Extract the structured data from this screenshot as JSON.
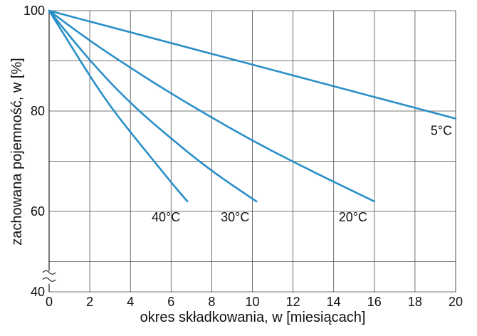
{
  "chart_data": {
    "type": "line",
    "title": "",
    "xlabel": "okres składkowania, w [miesiącach]",
    "ylabel": "zachowana pojemność, w [%]",
    "xlim": [
      0,
      20
    ],
    "ylim": [
      40,
      100
    ],
    "x_ticks": [
      0,
      2,
      4,
      6,
      8,
      10,
      12,
      14,
      16,
      18,
      20
    ],
    "y_ticks": [
      40,
      60,
      80,
      100
    ],
    "y_ticks_labels": [
      "40",
      "60",
      "80",
      "100"
    ],
    "y_axis_break_at": 45,
    "grid": true,
    "line_color": "#2a8fc8",
    "series": [
      {
        "name": "5°C",
        "x": [
          0,
          20
        ],
        "y": [
          100,
          78.5
        ]
      },
      {
        "name": "20°C",
        "x": [
          0,
          2,
          4,
          6,
          8,
          10,
          12,
          14,
          16
        ],
        "y": [
          100,
          94,
          88.6,
          83.5,
          78.7,
          74.1,
          69.9,
          65.9,
          62
        ]
      },
      {
        "name": "30°C",
        "x": [
          0,
          2,
          4,
          6,
          8,
          10.2
        ],
        "y": [
          100,
          90,
          81.5,
          74.5,
          68,
          62
        ]
      },
      {
        "name": "40°C",
        "x": [
          0,
          1,
          2,
          3,
          4,
          5,
          6,
          6.8
        ],
        "y": [
          100,
          93.5,
          87,
          81,
          75.8,
          70.8,
          65.8,
          62
        ]
      }
    ]
  }
}
